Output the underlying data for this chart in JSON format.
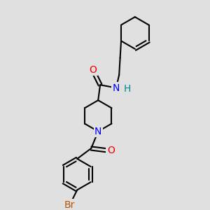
{
  "bg_color": "#e0e0e0",
  "bond_color": "#000000",
  "bond_width": 1.5,
  "atom_colors": {
    "N": "#0000ee",
    "O": "#ee0000",
    "Br": "#bb5500",
    "H": "#008888",
    "C": "#000000"
  },
  "font_size_atom": 10
}
